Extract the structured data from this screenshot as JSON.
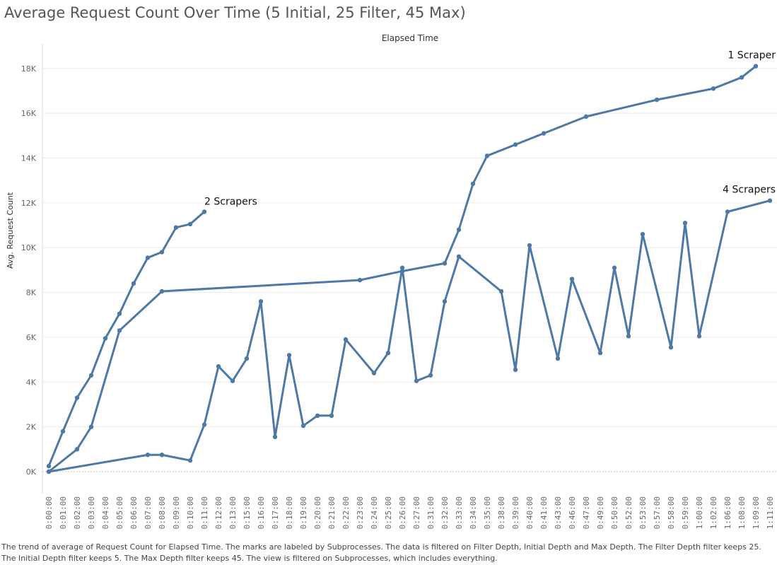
{
  "title": "Average Request Count Over Time (5 Initial, 25 Filter, 45 Max)",
  "caption": "The trend of average of Request Count for Elapsed Time.  The marks are labeled by Subprocesses. The data is filtered on Filter Depth, Initial Depth and Max Depth. The Filter Depth filter keeps 25. The Initial Depth filter keeps 5. The Max Depth filter keeps 45. The view is filtered on Subprocesses, which includes everything.",
  "colors": {
    "line": "#4e79a7",
    "grid": "#ececec",
    "zero": "#cccccc"
  },
  "chart_data": {
    "type": "line",
    "title": "Average Request Count Over Time (5 Initial, 25 Filter, 45 Max)",
    "xlabel": "Elapsed Time",
    "ylabel": "Avg. Request Count",
    "ylim": [
      0,
      19000
    ],
    "yticks": [
      0,
      2000,
      4000,
      6000,
      8000,
      10000,
      12000,
      14000,
      16000,
      18000
    ],
    "ytick_labels": [
      "0K",
      "2K",
      "4K",
      "6K",
      "8K",
      "10K",
      "12K",
      "14K",
      "16K",
      "18K"
    ],
    "grid": true,
    "categories": [
      "0:00:00",
      "0:01:00",
      "0:02:00",
      "0:03:00",
      "0:04:00",
      "0:05:00",
      "0:06:00",
      "0:07:00",
      "0:08:00",
      "0:09:00",
      "0:10:00",
      "0:11:00",
      "0:12:00",
      "0:13:00",
      "0:15:00",
      "0:16:00",
      "0:17:00",
      "0:18:00",
      "0:19:00",
      "0:20:00",
      "0:21:00",
      "0:22:00",
      "0:23:00",
      "0:24:00",
      "0:25:00",
      "0:26:00",
      "0:27:00",
      "0:31:00",
      "0:32:00",
      "0:33:00",
      "0:34:00",
      "0:35:00",
      "0:38:00",
      "0:39:00",
      "0:40:00",
      "0:41:00",
      "0:43:00",
      "0:46:00",
      "0:47:00",
      "0:49:00",
      "0:50:00",
      "0:52:00",
      "0:53:00",
      "0:57:00",
      "0:58:00",
      "0:59:00",
      "1:00:00",
      "1:02:00",
      "1:06:00",
      "1:08:00",
      "1:09:00",
      "1:11:00"
    ],
    "series": [
      {
        "name": "1 Scraper",
        "x": [
          "0:00:00",
          "0:02:00",
          "0:03:00",
          "0:05:00",
          "0:08:00",
          "0:23:00",
          "0:26:00",
          "0:32:00",
          "0:33:00",
          "0:34:00",
          "0:35:00",
          "0:39:00",
          "0:41:00",
          "0:47:00",
          "0:57:00",
          "1:02:00",
          "1:08:00",
          "1:09:00"
        ],
        "y": [
          0,
          1000,
          2000,
          6300,
          8050,
          8550,
          8950,
          9300,
          10800,
          12850,
          14100,
          14600,
          15100,
          15850,
          16600,
          17100,
          17600,
          18100
        ]
      },
      {
        "name": "2 Scrapers",
        "x": [
          "0:00:00",
          "0:01:00",
          "0:02:00",
          "0:03:00",
          "0:04:00",
          "0:05:00",
          "0:06:00",
          "0:07:00",
          "0:08:00",
          "0:09:00",
          "0:10:00",
          "0:11:00"
        ],
        "y": [
          250,
          1800,
          3300,
          4300,
          5950,
          7050,
          8400,
          9550,
          9800,
          10900,
          11050,
          11600
        ]
      },
      {
        "name": "4 Scrapers",
        "x": [
          "0:00:00",
          "0:07:00",
          "0:08:00",
          "0:10:00",
          "0:11:00",
          "0:12:00",
          "0:13:00",
          "0:15:00",
          "0:16:00",
          "0:17:00",
          "0:18:00",
          "0:19:00",
          "0:20:00",
          "0:21:00",
          "0:22:00",
          "0:24:00",
          "0:25:00",
          "0:26:00",
          "0:27:00",
          "0:31:00",
          "0:32:00",
          "0:33:00",
          "0:38:00",
          "0:39:00",
          "0:40:00",
          "0:43:00",
          "0:46:00",
          "0:49:00",
          "0:50:00",
          "0:52:00",
          "0:53:00",
          "0:58:00",
          "0:59:00",
          "1:00:00",
          "1:06:00",
          "1:11:00"
        ],
        "y": [
          0,
          750,
          750,
          500,
          2100,
          4700,
          4050,
          5050,
          7600,
          1550,
          5200,
          2050,
          2500,
          2500,
          5900,
          4400,
          5300,
          9100,
          4050,
          4300,
          7600,
          9600,
          8050,
          4550,
          10100,
          5050,
          8600,
          5300,
          9100,
          6050,
          10600,
          5550,
          11100,
          6050,
          11600,
          12100
        ]
      }
    ],
    "annotations": [
      {
        "text": "1 Scraper",
        "series": "1 Scraper"
      },
      {
        "text": "2 Scrapers",
        "series": "2 Scrapers"
      },
      {
        "text": "4 Scrapers",
        "series": "4 Scrapers"
      }
    ]
  }
}
